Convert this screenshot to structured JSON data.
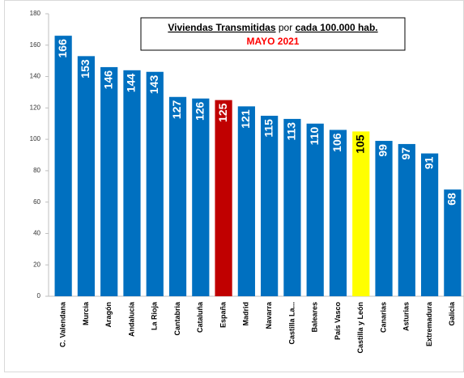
{
  "chart_data": {
    "type": "bar",
    "title": [
      "Viviendas Transmitidas",
      "por",
      "cada 100.000 hab."
    ],
    "subtitle": "MAYO 2021",
    "categories": [
      "C. Valendana",
      "Murcia",
      "Aragón",
      "Andalucía",
      "La Rioja",
      "Cantabria",
      "Cataluña",
      "España",
      "Madrid",
      "Navarra",
      "Castilla La...",
      "Baleares",
      "País Vasco",
      "Castilla y León",
      "Canarias",
      "Asturias",
      "Extremadura",
      "Galicia"
    ],
    "values": [
      166,
      153,
      146,
      144,
      143,
      127,
      126,
      125,
      121,
      115,
      113,
      110,
      106,
      105,
      99,
      97,
      91,
      68
    ],
    "colors": [
      "#0070c0",
      "#0070c0",
      "#0070c0",
      "#0070c0",
      "#0070c0",
      "#0070c0",
      "#0070c0",
      "#c00000",
      "#0070c0",
      "#0070c0",
      "#0070c0",
      "#0070c0",
      "#0070c0",
      "#ffff00",
      "#0070c0",
      "#0070c0",
      "#0070c0",
      "#0070c0"
    ],
    "ylim": [
      0,
      180
    ],
    "yticks": [
      0,
      20,
      40,
      60,
      80,
      100,
      120,
      140,
      160,
      180
    ],
    "grid": false
  }
}
